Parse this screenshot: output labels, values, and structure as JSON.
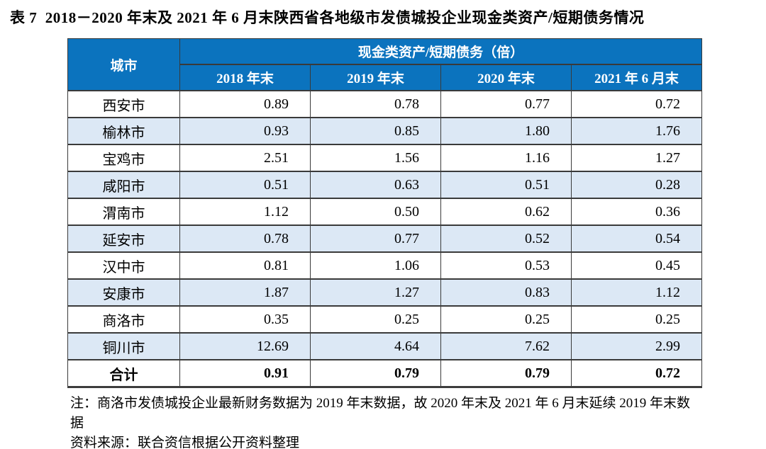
{
  "title": "表 7  2018－2020 年末及 2021 年 6 月末陕西省各地级市发债城投企业现金类资产/短期债务情况",
  "table": {
    "header": {
      "city_label": "城市",
      "group_label": "现金类资产/短期债务（倍）",
      "periods": [
        "2018 年末",
        "2019 年末",
        "2020 年末",
        "2021 年 6 月末"
      ]
    },
    "rows": [
      {
        "city": "西安市",
        "values": [
          "0.89",
          "0.78",
          "0.77",
          "0.72"
        ],
        "is_total": false
      },
      {
        "city": "榆林市",
        "values": [
          "0.93",
          "0.85",
          "1.80",
          "1.76"
        ],
        "is_total": false
      },
      {
        "city": "宝鸡市",
        "values": [
          "2.51",
          "1.56",
          "1.16",
          "1.27"
        ],
        "is_total": false
      },
      {
        "city": "咸阳市",
        "values": [
          "0.51",
          "0.63",
          "0.51",
          "0.28"
        ],
        "is_total": false
      },
      {
        "city": "渭南市",
        "values": [
          "1.12",
          "0.50",
          "0.62",
          "0.36"
        ],
        "is_total": false
      },
      {
        "city": "延安市",
        "values": [
          "0.78",
          "0.77",
          "0.52",
          "0.54"
        ],
        "is_total": false
      },
      {
        "city": "汉中市",
        "values": [
          "0.81",
          "1.06",
          "0.53",
          "0.45"
        ],
        "is_total": false
      },
      {
        "city": "安康市",
        "values": [
          "1.87",
          "1.27",
          "0.83",
          "1.12"
        ],
        "is_total": false
      },
      {
        "city": "商洛市",
        "values": [
          "0.35",
          "0.25",
          "0.25",
          "0.25"
        ],
        "is_total": false
      },
      {
        "city": "铜川市",
        "values": [
          "12.69",
          "4.64",
          "7.62",
          "2.99"
        ],
        "is_total": false
      },
      {
        "city": "合计",
        "values": [
          "0.91",
          "0.79",
          "0.79",
          "0.72"
        ],
        "is_total": true
      }
    ]
  },
  "notes": {
    "note": "注：商洛市发债城投企业最新财务数据为 2019 年末数据，故 2020 年末及 2021 年 6 月末延续 2019 年末数据",
    "source": "资料来源：联合资信根据公开资料整理"
  },
  "colors": {
    "header_bg": "#0B73BE",
    "header_text": "#FFFFFF",
    "alt_row_bg": "#DCE8F5",
    "border": "#3A3A3A"
  }
}
